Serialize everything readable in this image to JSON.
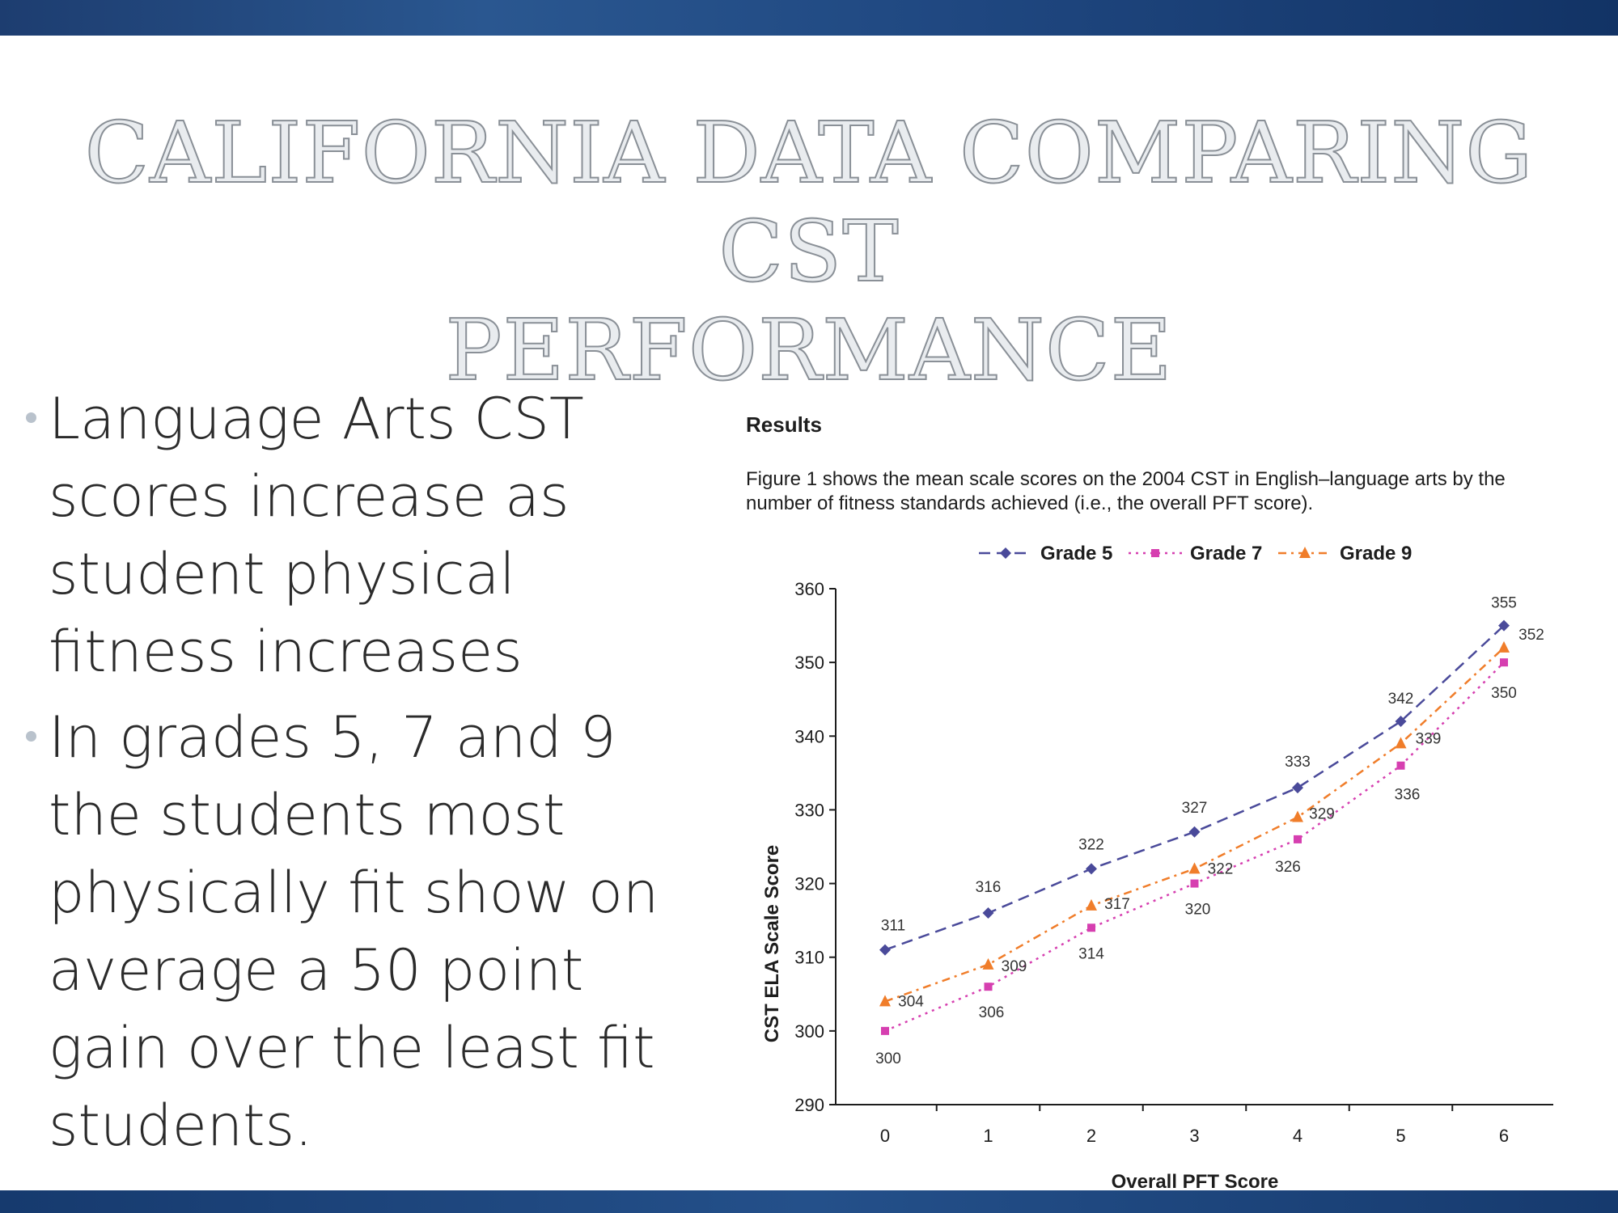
{
  "slide": {
    "title_lines": [
      "CALIFORNIA DATA COMPARING CST",
      "PERFORMANCE"
    ],
    "bullets": [
      "Language Arts CST scores increase as student physical fitness increases",
      "In grades 5, 7 and 9 the students most physically fit show on average a 50 point gain over the least fit students."
    ],
    "figure_label": "Results",
    "caption": "Figure 1 shows the mean scale scores on the 2004 CST in English–language arts by the number of fitness standards achieved (i.e., the overall PFT score)."
  },
  "colors": {
    "grade5": "#4a4a9a",
    "grade7": "#d63fb0",
    "grade9": "#f07d2a",
    "axis": "#1d1d1d",
    "top_band": "#1f4780"
  },
  "chart_data": {
    "type": "line",
    "x": [
      0,
      1,
      2,
      3,
      4,
      5,
      6
    ],
    "xlabel": "Overall PFT Score",
    "ylabel": "CST ELA Scale Score",
    "ylim": [
      290,
      360
    ],
    "yticks": [
      290,
      300,
      310,
      320,
      330,
      340,
      350,
      360
    ],
    "grid": false,
    "legend_position": "top",
    "series": [
      {
        "name": "Grade 5",
        "values": [
          311,
          316,
          322,
          327,
          333,
          342,
          355
        ],
        "marker": "diamond",
        "line": "dashed"
      },
      {
        "name": "Grade 7",
        "values": [
          300,
          306,
          314,
          320,
          326,
          336,
          350
        ],
        "marker": "square",
        "line": "dotted"
      },
      {
        "name": "Grade 9",
        "values": [
          304,
          309,
          317,
          322,
          329,
          339,
          352
        ],
        "marker": "triangle",
        "line": "dash-dot"
      }
    ]
  }
}
